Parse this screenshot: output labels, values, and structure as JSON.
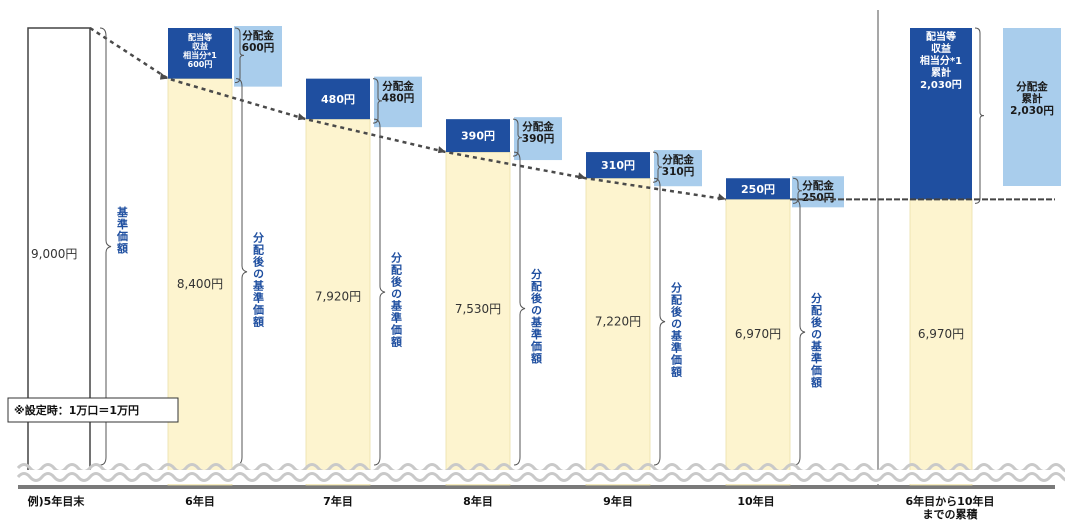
{
  "chart_data": {
    "type": "bar",
    "categories": [
      "例)5年目末",
      "6年目",
      "7年目",
      "8年目",
      "9年目",
      "10年目",
      "6年目から10年目までの累積"
    ],
    "base_values": [
      9000,
      8400,
      7920,
      7530,
      7220,
      6970,
      6970
    ],
    "base_labels": [
      "9,000円",
      "8,400円",
      "7,920円",
      "7,530円",
      "7,220円",
      "6,970円",
      "6,970円"
    ],
    "distribution_values": [
      null,
      600,
      480,
      390,
      310,
      250,
      2030
    ],
    "distribution_box_labels": [
      "配当等収益相当分*1 600円",
      "480円",
      "390円",
      "310円",
      "250円",
      "配当等収益相当分*1 累計 2,030円"
    ],
    "payout_labels": [
      "分配金 600円",
      "分配金 480円",
      "分配金 390円",
      "分配金 310円",
      "分配金 250円",
      "分配金 累計 2,030円"
    ],
    "brace_labels": [
      "基準価額",
      "分配後の基準価額",
      "分配後の基準価額",
      "分配後の基準価額",
      "分配後の基準価額",
      "分配後の基準価額"
    ],
    "note": "※設定時：1万口＝1万円",
    "colors": {
      "base_fill": "#fdf4cf",
      "distribution_fill": "#1f4fa0",
      "payout_fill": "#a9cdec",
      "dashed_line": "#4a4a4a",
      "label_blue": "#1f4fa0"
    }
  }
}
